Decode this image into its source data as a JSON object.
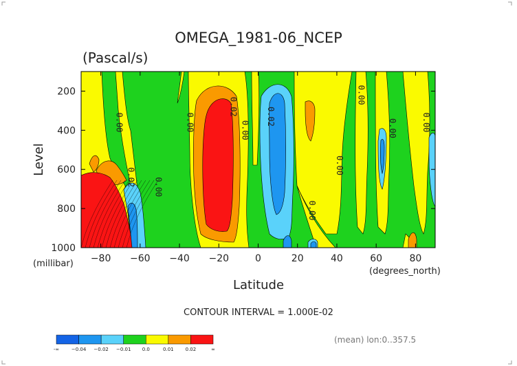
{
  "chart_data": {
    "type": "heatmap",
    "title": "OMEGA_1981-06_NCEP",
    "units": "(Pascal/s)",
    "xlabel": "Latitude",
    "xunit": "(degrees_north)",
    "ylabel": "Level",
    "yunit": "(millibar)",
    "xlim": [
      -90,
      90
    ],
    "ylim": [
      1000,
      100
    ],
    "xticks": [
      -80,
      -60,
      -40,
      -20,
      0,
      20,
      40,
      60,
      80
    ],
    "yticks": [
      200,
      400,
      600,
      800,
      1000
    ],
    "contour_interval": "CONTOUR INTERVAL = 1.000E-02",
    "footnote": "(mean) lon:0..357.5",
    "colorbar": {
      "labels": [
        "-∞",
        "−0.04",
        "−0.02",
        "−0.01",
        "0.0",
        "0.01",
        "0.02",
        "∞"
      ],
      "colors": [
        "#1464e6",
        "#1e96f0",
        "#5ad2fa",
        "#1ed21e",
        "#fafa00",
        "#fa9a00",
        "#fa1414"
      ]
    },
    "contour_labels": [
      {
        "lat": -72,
        "lev": 360,
        "text": "0.00"
      },
      {
        "lat": -66,
        "lev": 640,
        "text": "0.02"
      },
      {
        "lat": -52,
        "lev": 690,
        "text": "0.00"
      },
      {
        "lat": -36,
        "lev": 360,
        "text": "0.00"
      },
      {
        "lat": -14,
        "lev": 280,
        "text": "0.02"
      },
      {
        "lat": -8,
        "lev": 400,
        "text": "0.00"
      },
      {
        "lat": 5,
        "lev": 330,
        "text": "0.02"
      },
      {
        "lat": 26,
        "lev": 810,
        "text": "0.00"
      },
      {
        "lat": 40,
        "lev": 580,
        "text": "0.00"
      },
      {
        "lat": 51,
        "lev": 220,
        "text": "0.00"
      },
      {
        "lat": 67,
        "lev": 390,
        "text": "0.00"
      },
      {
        "lat": 84,
        "lev": 360,
        "text": "0.00"
      }
    ]
  }
}
